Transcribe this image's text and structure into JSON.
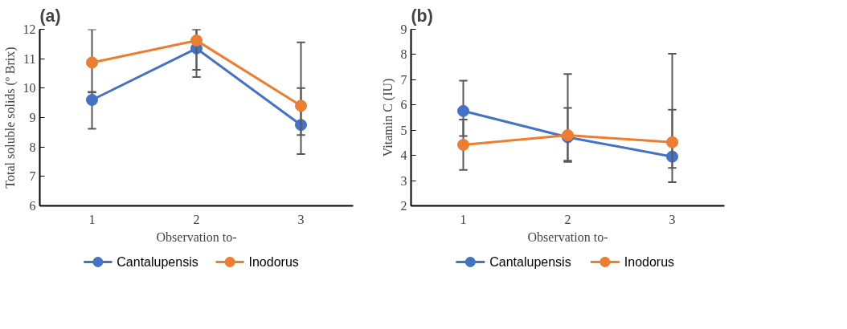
{
  "chart_data": [
    {
      "type": "line",
      "title": "(a)",
      "xlabel": "Observation to-",
      "ylabel": "Total soluble solids (º Brix)",
      "categories": [
        "1",
        "2",
        "3"
      ],
      "ylim": [
        6,
        12
      ],
      "yticks": [
        6,
        7,
        8,
        9,
        10,
        11,
        12
      ],
      "grid": false,
      "legend": "bottom",
      "marker": "circle",
      "line_style": "solid",
      "series": [
        {
          "name": "Cantalupensis",
          "color": "#4472c4",
          "values": [
            9.6,
            11.35,
            8.75
          ],
          "errors": [
            [
              8.62,
              9.85
            ],
            [
              10.38,
              12
            ],
            [
              7.76,
              10.0
            ]
          ]
        },
        {
          "name": "Inodorus",
          "color": "#ed7d31",
          "values": [
            10.87,
            11.62,
            9.4
          ],
          "errors": [
            [
              9.87,
              12
            ],
            [
              10.62,
              12
            ],
            [
              8.41,
              11.56
            ]
          ]
        }
      ]
    },
    {
      "type": "line",
      "title": "(b)",
      "xlabel": "Observation to-",
      "ylabel": "Vitamin C (IU)",
      "categories": [
        "1",
        "2",
        "3"
      ],
      "ylim": [
        2,
        9
      ],
      "yticks": [
        2,
        3,
        4,
        5,
        6,
        7,
        8,
        9
      ],
      "grid": false,
      "legend": "bottom",
      "marker": "circle",
      "line_style": "solid",
      "series": [
        {
          "name": "Cantalupensis",
          "color": "#4472c4",
          "values": [
            5.76,
            4.72,
            3.95
          ],
          "errors": [
            [
              4.77,
              6.96
            ],
            [
              3.74,
              5.88
            ],
            [
              2.94,
              5.81
            ]
          ]
        },
        {
          "name": "Inodorus",
          "color": "#ed7d31",
          "values": [
            4.42,
            4.8,
            4.52
          ],
          "errors": [
            [
              3.42,
              5.42
            ],
            [
              3.79,
              7.23
            ],
            [
              3.5,
              8.03
            ]
          ]
        }
      ]
    }
  ]
}
